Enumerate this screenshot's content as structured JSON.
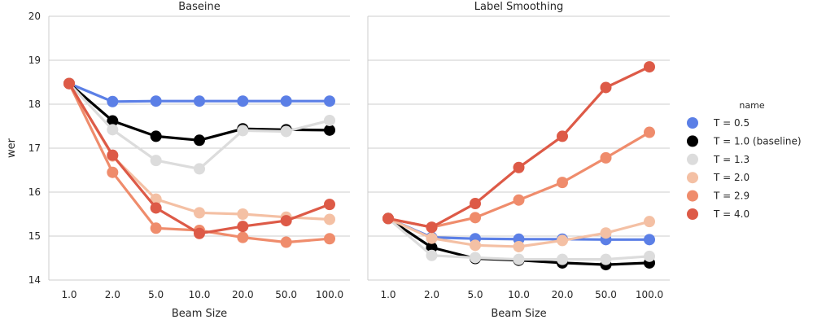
{
  "chart_data": [
    {
      "type": "line",
      "title": "Baseine",
      "xlabel": "Beam Size",
      "ylabel": "wer",
      "categories": [
        "1.0",
        "2.0",
        "5.0",
        "10.0",
        "20.0",
        "50.0",
        "100.0"
      ],
      "ylim": [
        14,
        20
      ],
      "yticks": [
        "14",
        "15",
        "16",
        "17",
        "18",
        "19",
        "20"
      ],
      "grid": "horizontal",
      "series": [
        {
          "name": "T = 0.5",
          "color": "#5b7fe6",
          "values": [
            18.47,
            18.06,
            18.07,
            18.07,
            18.07,
            18.07,
            18.07
          ]
        },
        {
          "name": "T = 1.0 (baseline)",
          "color": "#000000",
          "values": [
            18.47,
            17.62,
            17.27,
            17.18,
            17.44,
            17.42,
            17.41
          ]
        },
        {
          "name": "T = 1.3",
          "color": "#dcdcdc",
          "values": [
            18.47,
            17.42,
            16.72,
            16.53,
            17.4,
            17.38,
            17.63
          ]
        },
        {
          "name": "T = 2.0",
          "color": "#f4c0a4",
          "values": [
            18.47,
            16.82,
            15.84,
            15.53,
            15.5,
            15.43,
            15.38
          ]
        },
        {
          "name": "T = 2.9",
          "color": "#ef8c6c",
          "values": [
            18.47,
            16.45,
            15.18,
            15.13,
            14.97,
            14.86,
            14.94
          ]
        },
        {
          "name": "T = 4.0",
          "color": "#dd5a47",
          "values": [
            18.47,
            16.84,
            15.64,
            15.06,
            15.22,
            15.35,
            15.72
          ]
        }
      ]
    },
    {
      "type": "line",
      "title": "Label Smoothing",
      "xlabel": "Beam Size",
      "ylabel": "",
      "categories": [
        "1.0",
        "2.0",
        "5.0",
        "10.0",
        "20.0",
        "50.0",
        "100.0"
      ],
      "ylim": [
        14,
        20
      ],
      "grid": "horizontal",
      "series": [
        {
          "name": "T = 0.5",
          "color": "#5b7fe6",
          "values": [
            15.4,
            14.97,
            14.94,
            14.93,
            14.93,
            14.92,
            14.92
          ]
        },
        {
          "name": "T = 1.0 (baseline)",
          "color": "#000000",
          "values": [
            15.4,
            14.74,
            14.49,
            14.45,
            14.39,
            14.35,
            14.39
          ]
        },
        {
          "name": "T = 1.3",
          "color": "#dcdcdc",
          "values": [
            15.4,
            14.56,
            14.51,
            14.47,
            14.47,
            14.47,
            14.54
          ]
        },
        {
          "name": "T = 2.0",
          "color": "#f4c0a4",
          "values": [
            15.4,
            14.95,
            14.79,
            14.76,
            14.9,
            15.07,
            15.33
          ]
        },
        {
          "name": "T = 2.9",
          "color": "#ef8c6c",
          "values": [
            15.4,
            15.2,
            15.42,
            15.82,
            16.22,
            16.78,
            17.36
          ]
        },
        {
          "name": "T = 4.0",
          "color": "#dd5a47",
          "values": [
            15.4,
            15.2,
            15.74,
            16.56,
            17.27,
            18.38,
            18.85
          ]
        }
      ]
    }
  ],
  "legend": {
    "title": "name",
    "placement": "center-right",
    "entries": [
      {
        "label": "T = 0.5",
        "color": "#5b7fe6"
      },
      {
        "label": "T = 1.0 (baseline)",
        "color": "#000000"
      },
      {
        "label": "T = 1.3",
        "color": "#dcdcdc"
      },
      {
        "label": "T = 2.0",
        "color": "#f4c0a4"
      },
      {
        "label": "T = 2.9",
        "color": "#ef8c6c"
      },
      {
        "label": "T = 4.0",
        "color": "#dd5a47"
      }
    ]
  }
}
